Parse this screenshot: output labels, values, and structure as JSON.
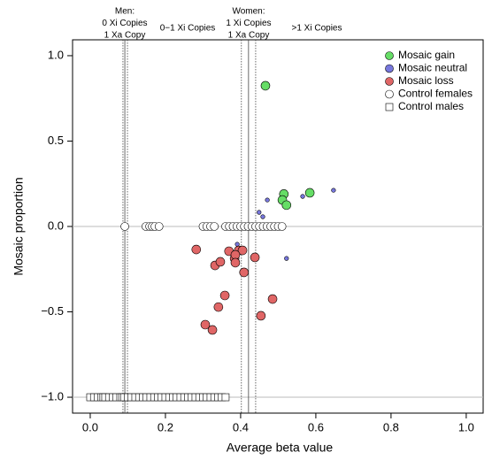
{
  "chart_data": {
    "type": "scatter",
    "xlabel": "Average beta value",
    "ylabel": "Mosaic proportion",
    "xlim": [
      -0.047,
      1.045
    ],
    "ylim": [
      -1.093,
      1.093
    ],
    "xticks": [
      {
        "value": 0,
        "label": "0.0"
      },
      0.2,
      0.4,
      0.6,
      0.8,
      {
        "value": 1,
        "label": "1.0"
      }
    ],
    "yticks": [
      {
        "value": -1,
        "label": "−1.0"
      },
      {
        "value": -0.5,
        "label": "−0.5"
      },
      {
        "value": 0,
        "label": "0.0"
      },
      0.5,
      {
        "value": 1,
        "label": "1.0"
      }
    ],
    "hlines": [
      0,
      -1
    ],
    "vlines": [
      {
        "value": 0.087,
        "style": "dotted"
      },
      {
        "value": 0.092,
        "style": "solid"
      },
      {
        "value": 0.099,
        "style": "dotted"
      },
      {
        "value": 0.402,
        "style": "dotted"
      },
      {
        "value": 0.421,
        "style": "solid"
      },
      {
        "value": 0.44,
        "style": "dotted"
      }
    ],
    "top_labels": [
      [
        "Men:",
        "0 Xi Copies",
        "1 Xa Copy"
      ],
      [
        "0−1 Xi Copies"
      ],
      [
        "Women:",
        "1 Xi Copies",
        "1 Xa Copy"
      ],
      [
        ">1 Xi Copies"
      ]
    ],
    "legend": "top-right",
    "series": [
      {
        "name": "Mosaic gain",
        "color": "#66dd66",
        "marker": "circle",
        "size": 5,
        "x": [
          0.466,
          0.515,
          0.511,
          0.522,
          0.584
        ],
        "values": [
          0.824,
          0.19,
          0.155,
          0.125,
          0.197
        ]
      },
      {
        "name": "Mosaic neutral",
        "color": "#7777dd",
        "marker": "circle",
        "size": 2.3,
        "x": [
          0.471,
          0.449,
          0.459,
          0.565,
          0.647,
          0.391,
          0.522
        ],
        "values": [
          0.155,
          0.083,
          0.057,
          0.176,
          0.212,
          -0.104,
          -0.187
        ]
      },
      {
        "name": "Mosaic loss",
        "color": "#e06666",
        "marker": "circle",
        "size": 5,
        "x": [
          0.282,
          0.332,
          0.346,
          0.369,
          0.384,
          0.395,
          0.405,
          0.386,
          0.409,
          0.438,
          0.358,
          0.341,
          0.306,
          0.325,
          0.485,
          0.454,
          0.386
        ],
        "values": [
          -0.135,
          -0.228,
          -0.207,
          -0.145,
          -0.187,
          -0.14,
          -0.14,
          -0.166,
          -0.269,
          -0.181,
          -0.404,
          -0.472,
          -0.575,
          -0.606,
          -0.425,
          -0.523,
          -0.212
        ]
      },
      {
        "name": "Control females",
        "color": "#ffffff",
        "marker": "circle",
        "size": 4.5,
        "x": [
          0.092,
          0.148,
          0.158,
          0.165,
          0.172,
          0.183,
          0.3,
          0.31,
          0.32,
          0.33,
          0.36,
          0.37,
          0.38,
          0.39,
          0.4,
          0.41,
          0.42,
          0.43,
          0.44,
          0.45,
          0.46,
          0.47,
          0.48,
          0.49,
          0.5,
          0.51
        ],
        "values": [
          0,
          0,
          0,
          0,
          0,
          0,
          0,
          0,
          0,
          0,
          0,
          0,
          0,
          0,
          0,
          0,
          0,
          0,
          0,
          0,
          0,
          0,
          0,
          0,
          0,
          0
        ]
      },
      {
        "name": "Control males",
        "color": "#ffffff",
        "marker": "square",
        "size": 4,
        "x": [
          0.0,
          0.01,
          0.02,
          0.03,
          0.035,
          0.04,
          0.05,
          0.06,
          0.07,
          0.08,
          0.085,
          0.09,
          0.1,
          0.11,
          0.12,
          0.13,
          0.14,
          0.15,
          0.16,
          0.17,
          0.18,
          0.19,
          0.2,
          0.21,
          0.22,
          0.23,
          0.24,
          0.25,
          0.26,
          0.27,
          0.28,
          0.29,
          0.3,
          0.31,
          0.32,
          0.33,
          0.34,
          0.35,
          0.36
        ],
        "values": [
          -1,
          -1,
          -1,
          -1,
          -1,
          -1,
          -1,
          -1,
          -1,
          -1,
          -1,
          -1,
          -1,
          -1,
          -1,
          -1,
          -1,
          -1,
          -1,
          -1,
          -1,
          -1,
          -1,
          -1,
          -1,
          -1,
          -1,
          -1,
          -1,
          -1,
          -1,
          -1,
          -1,
          -1,
          -1,
          -1,
          -1,
          -1,
          -1
        ]
      }
    ]
  }
}
